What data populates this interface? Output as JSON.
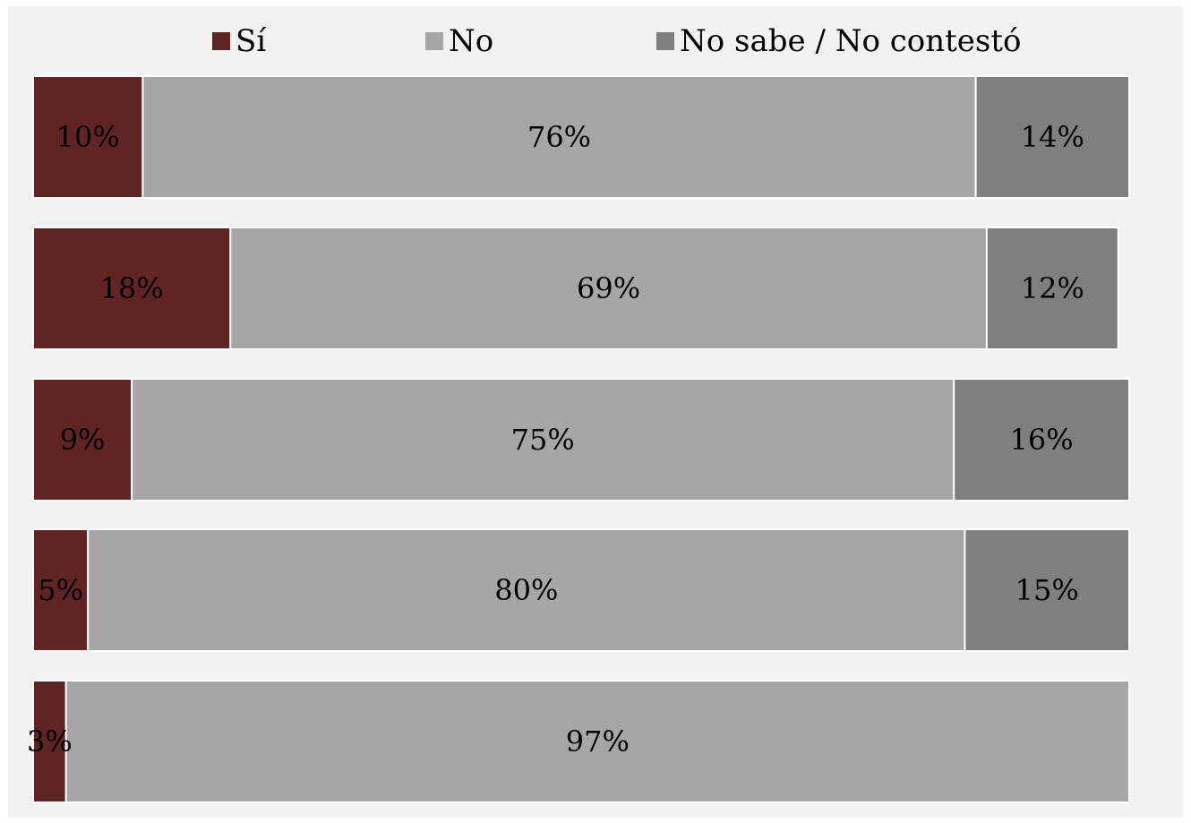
{
  "chart_data": {
    "type": "bar",
    "orientation": "horizontal",
    "stacked": true,
    "percent_stacked": true,
    "grid": false,
    "legend_position": "top",
    "xlim": [
      0,
      100
    ],
    "categories": [
      "",
      "",
      "",
      "",
      ""
    ],
    "series": [
      {
        "name": "Sí",
        "color": "#612424",
        "values": [
          10,
          18,
          9,
          5,
          3
        ],
        "labels": [
          "10%",
          "18%",
          "9%",
          "5%",
          "3%"
        ]
      },
      {
        "name": "No",
        "color": "#a6a6a6",
        "values": [
          76,
          69,
          75,
          80,
          97
        ],
        "labels": [
          "76%",
          "69%",
          "75%",
          "80%",
          "97%"
        ]
      },
      {
        "name": "No sabe / No contestó",
        "color": "#7f7f7f",
        "values": [
          14,
          12,
          16,
          15,
          0
        ],
        "labels": [
          "14%",
          "12%",
          "16%",
          "15%",
          ""
        ]
      }
    ]
  }
}
